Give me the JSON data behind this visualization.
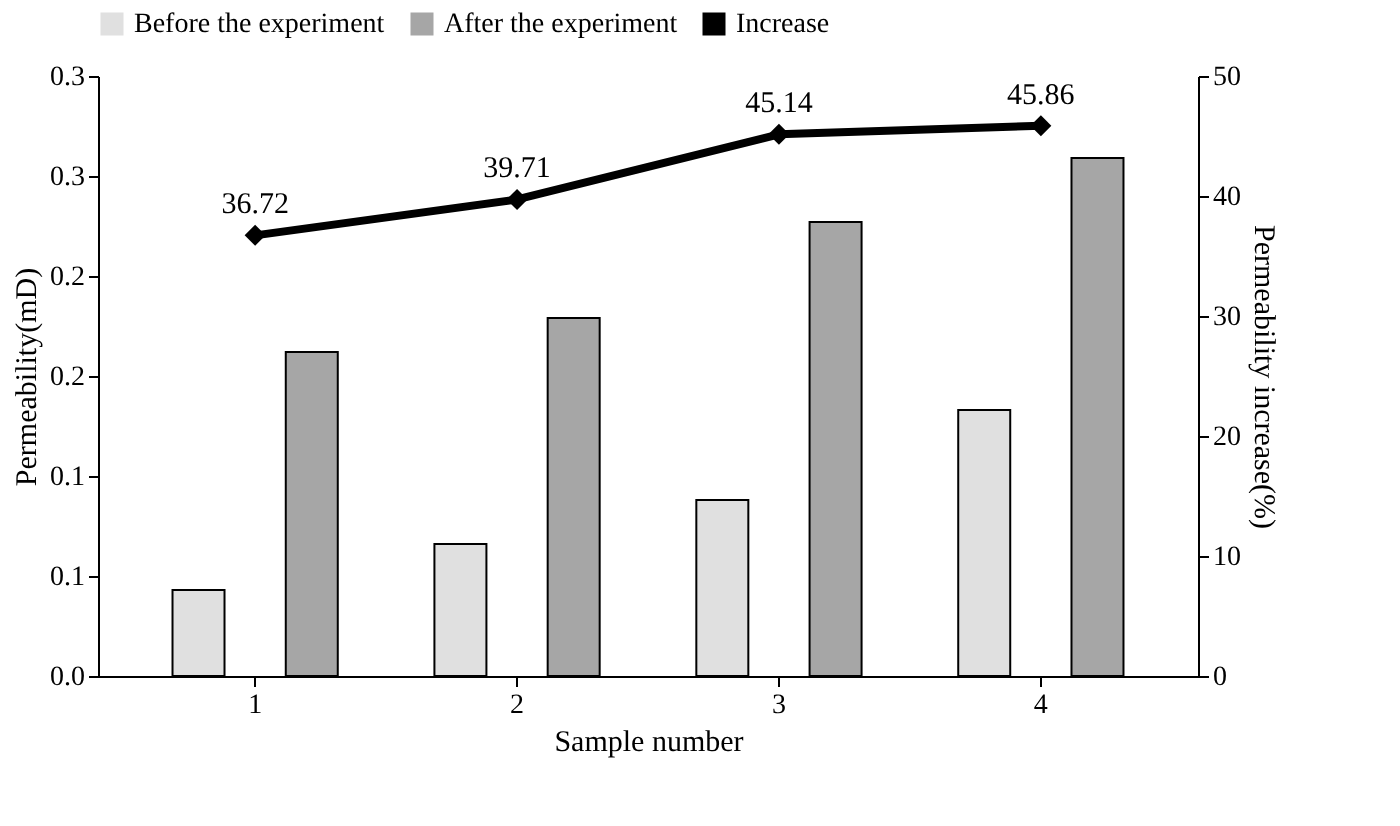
{
  "chart_data": {
    "type": "bar",
    "xlabel": "Sample number",
    "ylabel": "Permeability(mD)",
    "y2label": "Permeability  increase(%)",
    "categories": [
      "1",
      "2",
      "3",
      "4"
    ],
    "series": [
      {
        "name": "Before the experiment",
        "color": "#e0e0e0",
        "values": [
          0.043,
          0.066,
          0.088,
          0.133
        ]
      },
      {
        "name": "After the experiment",
        "color": "#a6a6a6",
        "values": [
          0.162,
          0.179,
          0.227,
          0.259
        ]
      },
      {
        "name": "Increase",
        "type": "line",
        "axis": "y2",
        "color": "#000000",
        "marker": "diamond",
        "values": [
          36.72,
          39.71,
          45.14,
          45.86
        ],
        "value_labels": [
          "36.72",
          "39.71",
          "45.14",
          "45.86"
        ]
      }
    ],
    "ylim": [
      0,
      0.3
    ],
    "yticks": [
      {
        "value": 0,
        "label": "0.0"
      },
      {
        "value": 0.05,
        "label": "0.1"
      },
      {
        "value": 0.1,
        "label": "0.1"
      },
      {
        "value": 0.15,
        "label": "0.2"
      },
      {
        "value": 0.2,
        "label": "0.2"
      },
      {
        "value": 0.25,
        "label": "0.3"
      },
      {
        "value": 0.3,
        "label": "0.3"
      }
    ],
    "y2lim": [
      0,
      50
    ],
    "y2ticks": [
      0,
      10,
      20,
      30,
      40,
      50
    ],
    "legend": "top",
    "grid": false
  }
}
